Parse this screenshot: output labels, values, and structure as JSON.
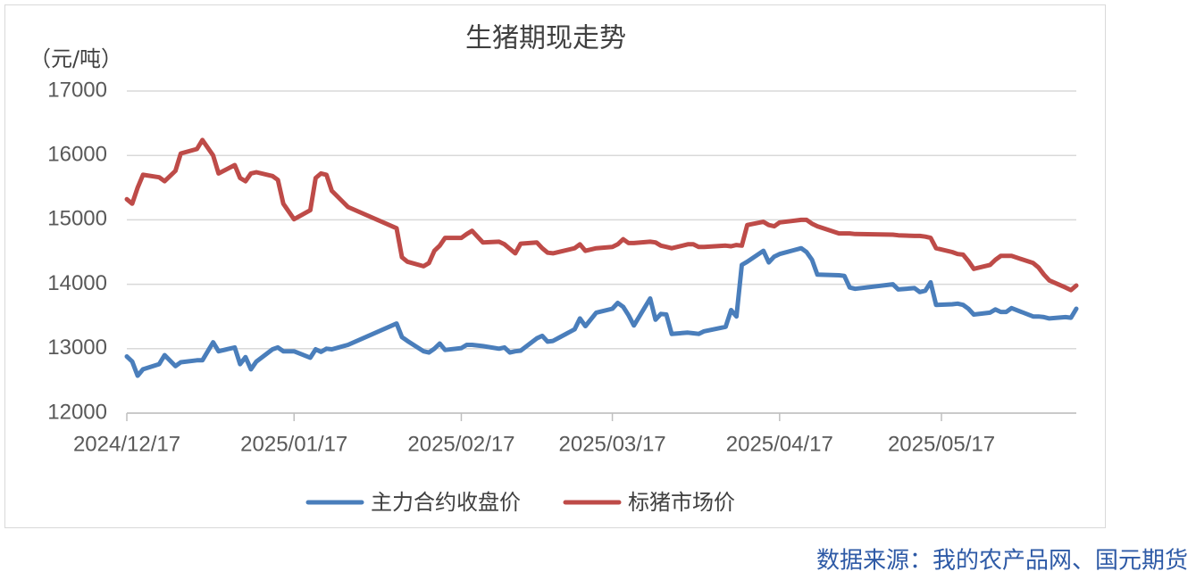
{
  "chart_data": {
    "type": "line",
    "title": "生猪期现走势",
    "y_label": "（元/吨）",
    "source": "数据来源：我的农产品网、国元期货",
    "x": [
      "2024/12/17",
      "2024/12/18",
      "2024/12/19",
      "2024/12/20",
      "2024/12/23",
      "2024/12/24",
      "2024/12/26",
      "2024/12/27",
      "2024/12/30",
      "2024/12/31",
      "2025/01/02",
      "2025/01/03",
      "2025/01/06",
      "2025/01/07",
      "2025/01/08",
      "2025/01/09",
      "2025/01/10",
      "2025/01/13",
      "2025/01/14",
      "2025/01/15",
      "2025/01/17",
      "2025/01/20",
      "2025/01/21",
      "2025/01/22",
      "2025/01/23",
      "2025/01/24",
      "2025/01/27",
      "2025/02/05",
      "2025/02/06",
      "2025/02/07",
      "2025/02/10",
      "2025/02/11",
      "2025/02/12",
      "2025/02/13",
      "2025/02/14",
      "2025/02/17",
      "2025/02/18",
      "2025/02/19",
      "2025/02/21",
      "2025/02/24",
      "2025/02/25",
      "2025/02/26",
      "2025/02/27",
      "2025/02/28",
      "2025/03/03",
      "2025/03/04",
      "2025/03/05",
      "2025/03/06",
      "2025/03/10",
      "2025/03/11",
      "2025/03/12",
      "2025/03/14",
      "2025/03/17",
      "2025/03/18",
      "2025/03/19",
      "2025/03/20",
      "2025/03/21",
      "2025/03/24",
      "2025/03/25",
      "2025/03/26",
      "2025/03/27",
      "2025/03/28",
      "2025/03/31",
      "2025/04/01",
      "2025/04/02",
      "2025/04/03",
      "2025/04/07",
      "2025/04/08",
      "2025/04/09",
      "2025/04/10",
      "2025/04/11",
      "2025/04/14",
      "2025/04/15",
      "2025/04/16",
      "2025/04/17",
      "2025/04/21",
      "2025/04/22",
      "2025/04/23",
      "2025/04/24",
      "2025/04/28",
      "2025/04/29",
      "2025/04/30",
      "2025/05/01",
      "2025/05/08",
      "2025/05/09",
      "2025/05/12",
      "2025/05/13",
      "2025/05/14",
      "2025/05/15",
      "2025/05/16",
      "2025/05/19",
      "2025/05/20",
      "2025/05/21",
      "2025/05/22",
      "2025/05/23",
      "2025/05/26",
      "2025/05/27",
      "2025/05/28",
      "2025/05/29",
      "2025/05/30",
      "2025/06/03",
      "2025/06/04",
      "2025/06/05",
      "2025/06/06",
      "2025/06/09",
      "2025/06/10",
      "2025/06/11"
    ],
    "series": [
      {
        "name": "主力合约收盘价",
        "color": "#4a7ebb",
        "values": [
          12880,
          12800,
          12580,
          12680,
          12760,
          12900,
          12730,
          12790,
          12820,
          12820,
          13100,
          12960,
          13020,
          12760,
          12870,
          12680,
          12800,
          12990,
          13020,
          12960,
          12960,
          12860,
          12990,
          12950,
          13000,
          12990,
          13060,
          13390,
          13180,
          13120,
          12960,
          12940,
          13000,
          13080,
          12980,
          13010,
          13060,
          13060,
          13040,
          13000,
          13020,
          12940,
          12960,
          12970,
          13160,
          13200,
          13110,
          13120,
          13300,
          13470,
          13350,
          13560,
          13620,
          13710,
          13650,
          13520,
          13360,
          13780,
          13450,
          13540,
          13530,
          13230,
          13250,
          13240,
          13230,
          13270,
          13340,
          13600,
          13500,
          14300,
          14350,
          14520,
          14340,
          14430,
          14470,
          14560,
          14500,
          14380,
          14150,
          14140,
          14130,
          13950,
          13930,
          14000,
          13920,
          13940,
          13880,
          13900,
          14030,
          13680,
          13690,
          13700,
          13680,
          13620,
          13530,
          13560,
          13610,
          13570,
          13570,
          13630,
          13500,
          13500,
          13490,
          13470,
          13490,
          13480,
          13620
        ]
      },
      {
        "name": "标猪市场价",
        "color": "#be4b48",
        "values": [
          15320,
          15250,
          15500,
          15700,
          15660,
          15600,
          15760,
          16030,
          16100,
          16240,
          16000,
          15720,
          15850,
          15650,
          15600,
          15720,
          15740,
          15680,
          15620,
          15250,
          15010,
          15150,
          15650,
          15720,
          15700,
          15450,
          15200,
          14870,
          14420,
          14350,
          14280,
          14330,
          14520,
          14600,
          14720,
          14720,
          14780,
          14830,
          14650,
          14660,
          14620,
          14550,
          14480,
          14630,
          14650,
          14560,
          14490,
          14480,
          14560,
          14620,
          14520,
          14560,
          14580,
          14620,
          14700,
          14640,
          14640,
          14660,
          14650,
          14600,
          14580,
          14560,
          14620,
          14620,
          14580,
          14580,
          14600,
          14590,
          14610,
          14600,
          14920,
          14970,
          14920,
          14900,
          14960,
          15000,
          15000,
          14940,
          14900,
          14790,
          14790,
          14790,
          14780,
          14770,
          14760,
          14750,
          14750,
          14740,
          14720,
          14560,
          14500,
          14470,
          14460,
          14360,
          14240,
          14300,
          14380,
          14440,
          14440,
          14440,
          14330,
          14260,
          14150,
          14060,
          13950,
          13910,
          13980
        ]
      }
    ],
    "xlim": [
      "2024/12/17",
      "2025/06/11"
    ],
    "xticks": [
      "2024/12/17",
      "2025/01/17",
      "2025/02/17",
      "2025/03/17",
      "2025/04/17",
      "2025/05/17"
    ],
    "ylim": [
      12000,
      17000
    ],
    "yticks": [
      12000,
      13000,
      14000,
      15000,
      16000,
      17000
    ],
    "grid": true,
    "legend": "bottom"
  }
}
